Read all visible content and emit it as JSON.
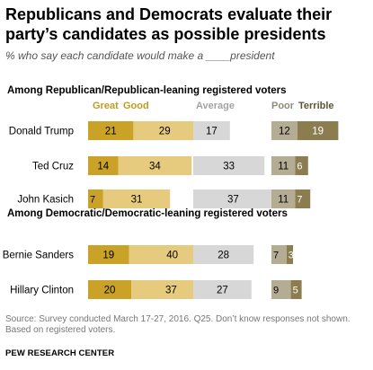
{
  "title": "Republicans and Democrats evaluate their party’s candidates as possible presidents",
  "subtitle": "% who say each candidate would make a ____president",
  "source_note": "Source: Survey conducted March 17-27, 2016. Q25. Don’t know responses not shown. Based on registered voters.",
  "brand": "PEW RESEARCH CENTER",
  "chart_data": {
    "type": "bar",
    "categories_order": [
      "Great",
      "Good",
      "Average",
      "Poor",
      "Terrible"
    ],
    "legend": {
      "great": "Great",
      "good": "Good",
      "average": "Average",
      "poor": "Poor",
      "terrible": "Terrible"
    },
    "colors": {
      "great": "#C9A227",
      "good": "#E6CB7E",
      "average": "#D7D7D7",
      "poor": "#B5AD93",
      "terrible": "#8B7D50",
      "label_great": "#C29B1E",
      "label_poor": "#8F8A78"
    },
    "groups": [
      {
        "label": "Among Republican/Republican-leaning registered voters",
        "rows": [
          {
            "candidate": "Donald Trump",
            "great": 21,
            "good": 29,
            "average": 17,
            "poor": 12,
            "terrible": 19
          },
          {
            "candidate": "Ted Cruz",
            "great": 14,
            "good": 34,
            "average": 33,
            "poor": 11,
            "terrible": 6
          },
          {
            "candidate": "John Kasich",
            "great": 7,
            "good": 31,
            "average": 37,
            "poor": 11,
            "terrible": 7
          }
        ]
      },
      {
        "label": "Among Democratic/Democratic-leaning registered voters",
        "rows": [
          {
            "candidate": "Bernie Sanders",
            "great": 19,
            "good": 40,
            "average": 28,
            "poor": 7,
            "terrible": 3
          },
          {
            "candidate": "Hillary Clinton",
            "great": 20,
            "good": 37,
            "average": 27,
            "poor": 9,
            "terrible": 5
          }
        ]
      }
    ]
  }
}
